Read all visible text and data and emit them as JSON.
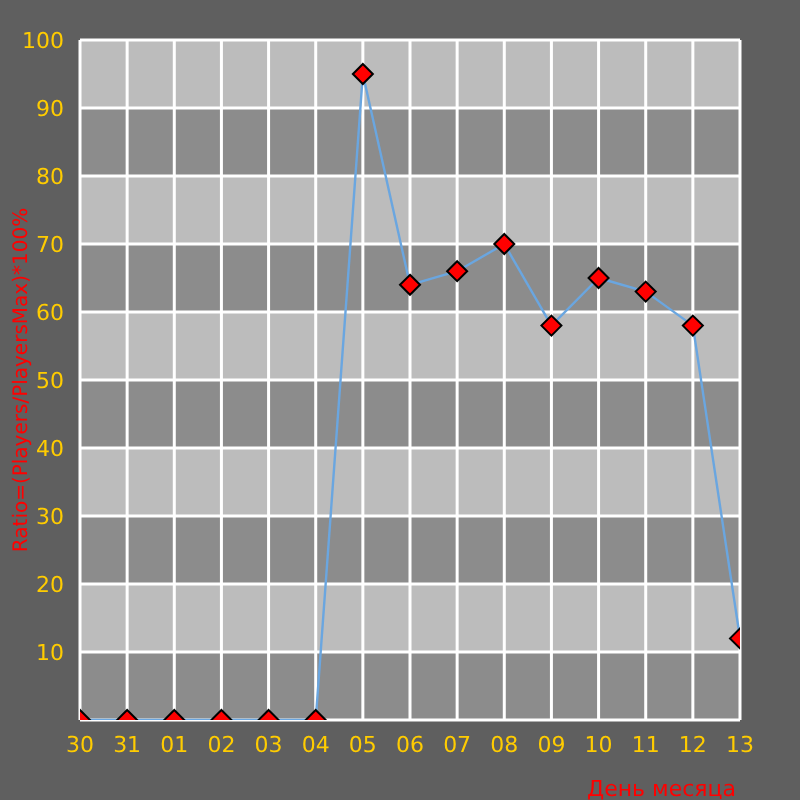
{
  "chart_data": {
    "type": "line",
    "xlabel": "День месяца",
    "ylabel": "Ratio=(Players/PlayersMax)*100%",
    "categories": [
      "30",
      "31",
      "01",
      "02",
      "03",
      "04",
      "05",
      "06",
      "07",
      "08",
      "09",
      "10",
      "11",
      "12",
      "13"
    ],
    "series": [
      {
        "color": "#6aa6e0",
        "values": [
          0,
          0,
          0,
          0,
          0,
          0,
          95,
          64,
          66,
          70,
          58,
          65,
          63,
          58,
          12
        ]
      }
    ],
    "ylim": [
      0,
      100
    ],
    "yticks": [
      10,
      20,
      30,
      40,
      50,
      60,
      70,
      80,
      90,
      100
    ],
    "grid": true,
    "marker": "diamond",
    "legend": false
  }
}
